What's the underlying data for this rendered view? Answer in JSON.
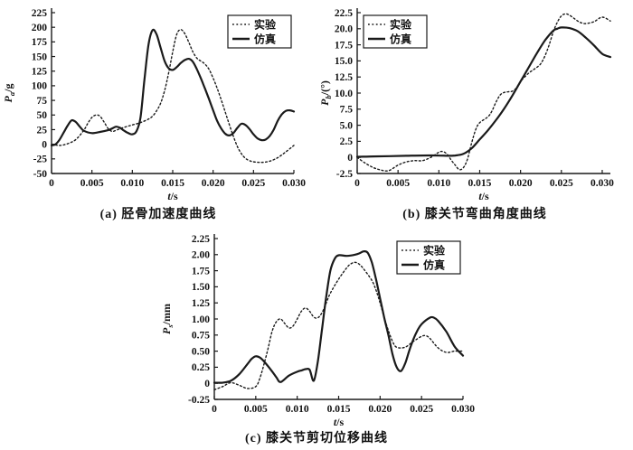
{
  "style": {
    "ink": "#1a1a1a",
    "background": "#ffffff"
  },
  "chart_data": [
    {
      "id": "a",
      "type": "line",
      "caption": "(a) 胫骨加速度曲线",
      "xlabel": {
        "base": "t",
        "unit": "/s"
      },
      "ylabel": {
        "base": "P",
        "sub": "a",
        "unit": "/g"
      },
      "xlim": [
        0,
        0.03
      ],
      "ylim": [
        -50,
        225
      ],
      "grid": false,
      "xticks": {
        "values": [
          0,
          0.005,
          0.01,
          0.015,
          0.02,
          0.025,
          0.03
        ],
        "labels": [
          "0",
          "0.005",
          "0.010",
          "0.015",
          "0.020",
          "0.025",
          "0.030"
        ]
      },
      "yticks": {
        "values": [
          225,
          200,
          175,
          150,
          125,
          100,
          75,
          50,
          25,
          0,
          -25,
          -50
        ],
        "labels": [
          "225",
          "200",
          "175",
          "150",
          "125",
          "100",
          "75",
          "50",
          "25",
          "0",
          "-25",
          "-50"
        ]
      },
      "legend": {
        "position": "top-right",
        "items": [
          {
            "label": "实验",
            "style": "dotted"
          },
          {
            "label": "仿真",
            "style": "solid"
          }
        ]
      },
      "series": [
        {
          "name": "实验",
          "style": "dotted",
          "x": [
            0,
            0.001,
            0.002,
            0.003,
            0.004,
            0.0045,
            0.005,
            0.0055,
            0.006,
            0.0065,
            0.007,
            0.0075,
            0.008,
            0.009,
            0.01,
            0.011,
            0.012,
            0.0125,
            0.013,
            0.0135,
            0.014,
            0.0145,
            0.015,
            0.0155,
            0.016,
            0.0165,
            0.017,
            0.0175,
            0.018,
            0.0185,
            0.019,
            0.0195,
            0.02,
            0.0205,
            0.021,
            0.0215,
            0.022,
            0.0225,
            0.023,
            0.0235,
            0.024,
            0.0245,
            0.025,
            0.026,
            0.027,
            0.028,
            0.029,
            0.03
          ],
          "y": [
            0,
            -2,
            1,
            8,
            24,
            36,
            46,
            50,
            48,
            38,
            27,
            22,
            24,
            29,
            33,
            37,
            43,
            48,
            57,
            70,
            92,
            122,
            158,
            188,
            196,
            189,
            174,
            158,
            147,
            142,
            137,
            128,
            113,
            96,
            76,
            55,
            34,
            14,
            -4,
            -16,
            -24,
            -28,
            -30,
            -31,
            -29,
            -23,
            -13,
            -2
          ]
        },
        {
          "name": "仿真",
          "style": "solid",
          "x": [
            0,
            0.0005,
            0.001,
            0.0015,
            0.002,
            0.0025,
            0.003,
            0.0035,
            0.004,
            0.005,
            0.006,
            0.007,
            0.0075,
            0.008,
            0.0085,
            0.009,
            0.0095,
            0.01,
            0.0105,
            0.011,
            0.0115,
            0.012,
            0.0125,
            0.013,
            0.0135,
            0.014,
            0.0145,
            0.015,
            0.0155,
            0.016,
            0.0165,
            0.017,
            0.0175,
            0.018,
            0.0185,
            0.019,
            0.0195,
            0.02,
            0.0205,
            0.021,
            0.0215,
            0.022,
            0.0225,
            0.023,
            0.0235,
            0.024,
            0.0245,
            0.025,
            0.0255,
            0.026,
            0.0265,
            0.027,
            0.0275,
            0.028,
            0.0285,
            0.029,
            0.0295,
            0.03
          ],
          "y": [
            -2,
            0,
            8,
            20,
            32,
            41,
            38,
            30,
            23,
            19,
            21,
            24,
            27,
            30,
            28,
            23,
            19,
            17,
            22,
            45,
            110,
            170,
            195,
            188,
            165,
            142,
            130,
            127,
            132,
            139,
            144,
            146,
            141,
            128,
            112,
            95,
            77,
            58,
            40,
            27,
            18,
            15,
            19,
            28,
            35,
            33,
            26,
            17,
            10,
            7,
            8,
            14,
            25,
            40,
            51,
            57,
            58,
            56
          ]
        }
      ]
    },
    {
      "id": "b",
      "type": "line",
      "caption": "(b) 膝关节弯曲角度曲线",
      "xlabel": {
        "base": "t",
        "unit": "/s"
      },
      "ylabel": {
        "base": "P",
        "sub": "b",
        "unit": "/(°)"
      },
      "xlim": [
        0,
        0.031
      ],
      "ylim": [
        -2.5,
        22.5
      ],
      "grid": false,
      "xticks": {
        "values": [
          0,
          0.005,
          0.01,
          0.015,
          0.02,
          0.025,
          0.03
        ],
        "labels": [
          "0",
          "0.005",
          "0.010",
          "0.015",
          "0.020",
          "0.025",
          "0.030"
        ]
      },
      "yticks": {
        "values": [
          22.5,
          20.0,
          17.5,
          15.0,
          12.5,
          10.0,
          7.5,
          5.0,
          2.5,
          0,
          -2.5
        ],
        "labels": [
          "22.5",
          "20.0",
          "17.5",
          "15.0",
          "12.5",
          "10.0",
          "7.5",
          "5.0",
          "2.5",
          "0",
          "-2.5"
        ]
      },
      "legend": {
        "position": "top-left",
        "items": [
          {
            "label": "实验",
            "style": "dotted"
          },
          {
            "label": "仿真",
            "style": "solid"
          }
        ]
      },
      "series": [
        {
          "name": "实验",
          "style": "dotted",
          "x": [
            0,
            0.001,
            0.002,
            0.003,
            0.0035,
            0.004,
            0.005,
            0.006,
            0.007,
            0.008,
            0.009,
            0.01,
            0.0105,
            0.011,
            0.0115,
            0.012,
            0.0125,
            0.013,
            0.0135,
            0.014,
            0.0145,
            0.015,
            0.016,
            0.0165,
            0.017,
            0.0175,
            0.018,
            0.0185,
            0.019,
            0.0195,
            0.02,
            0.021,
            0.022,
            0.0225,
            0.023,
            0.0235,
            0.024,
            0.0245,
            0.025,
            0.0255,
            0.026,
            0.027,
            0.0275,
            0.028,
            0.029,
            0.03,
            0.031
          ],
          "y": [
            0,
            -0.9,
            -1.6,
            -2.0,
            -2.1,
            -2.0,
            -1.2,
            -0.7,
            -0.5,
            -0.5,
            0.0,
            0.8,
            0.9,
            0.5,
            -0.4,
            -1.2,
            -1.9,
            -1.6,
            -0.3,
            2.2,
            4.3,
            5.4,
            6.3,
            7.2,
            8.6,
            9.7,
            10.1,
            10.2,
            10.3,
            10.8,
            11.8,
            13.1,
            14.0,
            14.6,
            15.8,
            17.5,
            19.5,
            21.0,
            22.0,
            22.3,
            22.1,
            21.2,
            20.9,
            20.8,
            21.1,
            21.8,
            21.2
          ]
        },
        {
          "name": "仿真",
          "style": "solid",
          "x": [
            0,
            0.002,
            0.004,
            0.006,
            0.008,
            0.01,
            0.011,
            0.012,
            0.013,
            0.014,
            0.015,
            0.016,
            0.017,
            0.018,
            0.019,
            0.02,
            0.021,
            0.022,
            0.023,
            0.024,
            0.0245,
            0.025,
            0.026,
            0.027,
            0.028,
            0.029,
            0.03,
            0.031
          ],
          "y": [
            0.1,
            0.15,
            0.2,
            0.25,
            0.3,
            0.3,
            0.25,
            0.3,
            0.55,
            1.4,
            2.8,
            4.2,
            5.8,
            7.6,
            9.6,
            11.8,
            14.0,
            16.2,
            18.2,
            19.7,
            20.0,
            20.2,
            20.1,
            19.6,
            18.6,
            17.4,
            16.1,
            15.6
          ]
        }
      ]
    },
    {
      "id": "c",
      "type": "line",
      "caption": "(c) 膝关节剪切位移曲线",
      "xlabel": {
        "base": "t",
        "unit": "/s"
      },
      "ylabel": {
        "base": "P",
        "sub": "s",
        "unit": "/mm"
      },
      "xlim": [
        0,
        0.03
      ],
      "ylim": [
        -0.25,
        2.25
      ],
      "grid": false,
      "xticks": {
        "values": [
          0,
          0.005,
          0.01,
          0.015,
          0.02,
          0.025,
          0.03
        ],
        "labels": [
          "0",
          "0.005",
          "0.010",
          "0.015",
          "0.020",
          "0.025",
          "0.030"
        ]
      },
      "yticks": {
        "values": [
          2.25,
          2.0,
          1.75,
          1.5,
          1.25,
          1.0,
          0.75,
          0.5,
          0.25,
          0,
          -0.25
        ],
        "labels": [
          "2.25",
          "2.00",
          "1.75",
          "1.50",
          "1.25",
          "1.00",
          "0.75",
          "0.50",
          "0.25",
          "0",
          "-0.25"
        ]
      },
      "legend": {
        "position": "top-right",
        "items": [
          {
            "label": "实验",
            "style": "dotted"
          },
          {
            "label": "仿真",
            "style": "solid"
          }
        ]
      },
      "series": [
        {
          "name": "实验",
          "style": "dotted",
          "x": [
            0,
            0.001,
            0.002,
            0.003,
            0.004,
            0.005,
            0.0055,
            0.006,
            0.0065,
            0.007,
            0.0075,
            0.008,
            0.0085,
            0.009,
            0.0095,
            0.01,
            0.0105,
            0.011,
            0.0115,
            0.012,
            0.0125,
            0.013,
            0.0135,
            0.014,
            0.015,
            0.016,
            0.0165,
            0.017,
            0.0175,
            0.018,
            0.019,
            0.0195,
            0.02,
            0.0205,
            0.021,
            0.0215,
            0.022,
            0.023,
            0.024,
            0.025,
            0.0255,
            0.026,
            0.027,
            0.028,
            0.029,
            0.03
          ],
          "y": [
            -0.1,
            -0.05,
            0.01,
            -0.03,
            -0.08,
            -0.05,
            0.08,
            0.3,
            0.55,
            0.82,
            0.96,
            1.0,
            0.93,
            0.86,
            0.89,
            1.0,
            1.12,
            1.17,
            1.12,
            1.03,
            1.02,
            1.1,
            1.25,
            1.4,
            1.62,
            1.8,
            1.86,
            1.88,
            1.85,
            1.78,
            1.6,
            1.45,
            1.25,
            1.02,
            0.82,
            0.65,
            0.56,
            0.56,
            0.65,
            0.73,
            0.74,
            0.7,
            0.55,
            0.48,
            0.5,
            0.5
          ]
        },
        {
          "name": "仿真",
          "style": "solid",
          "x": [
            0,
            0.001,
            0.002,
            0.003,
            0.004,
            0.0045,
            0.005,
            0.0055,
            0.006,
            0.007,
            0.0075,
            0.008,
            0.009,
            0.01,
            0.0105,
            0.011,
            0.0115,
            0.012,
            0.0125,
            0.013,
            0.0135,
            0.014,
            0.0145,
            0.015,
            0.016,
            0.017,
            0.0175,
            0.018,
            0.0185,
            0.019,
            0.0195,
            0.02,
            0.0205,
            0.021,
            0.0215,
            0.022,
            0.0225,
            0.023,
            0.0235,
            0.024,
            0.0245,
            0.025,
            0.026,
            0.0265,
            0.027,
            0.028,
            0.029,
            0.03
          ],
          "y": [
            0.01,
            0.01,
            0.04,
            0.14,
            0.3,
            0.38,
            0.42,
            0.4,
            0.34,
            0.18,
            0.09,
            0.02,
            0.12,
            0.18,
            0.2,
            0.22,
            0.21,
            0.04,
            0.35,
            0.85,
            1.35,
            1.75,
            1.93,
            1.99,
            1.98,
            2.0,
            2.02,
            2.05,
            2.03,
            1.88,
            1.62,
            1.32,
            1.02,
            0.75,
            0.45,
            0.25,
            0.19,
            0.3,
            0.5,
            0.68,
            0.82,
            0.92,
            1.02,
            1.02,
            0.97,
            0.8,
            0.57,
            0.43
          ]
        }
      ]
    }
  ]
}
